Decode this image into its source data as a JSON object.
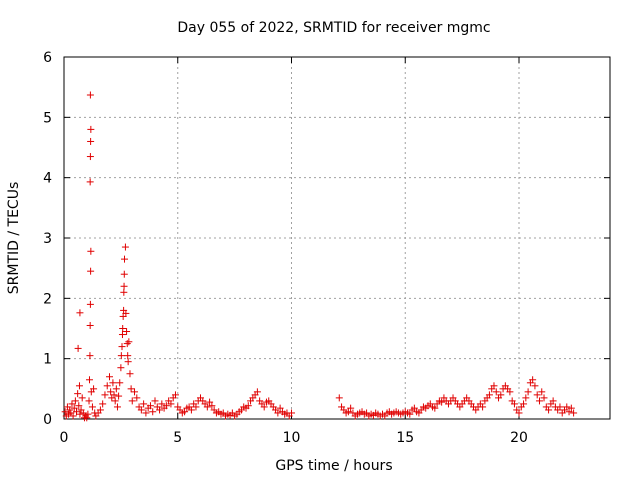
{
  "chart_data": {
    "type": "scatter",
    "title": "Day 055 of 2022, SRMTID for receiver mgmc",
    "xlabel": "GPS time / hours",
    "ylabel": "SRMTID / TECUs",
    "xlim": [
      0,
      24
    ],
    "ylim": [
      0,
      6
    ],
    "xticks": [
      0,
      5,
      10,
      15,
      20
    ],
    "yticks": [
      0,
      1,
      2,
      3,
      4,
      5,
      6
    ],
    "grid": true,
    "marker": "plus",
    "color": "#e00000",
    "series": [
      {
        "name": "SRMTID",
        "points": [
          [
            0.05,
            0.12
          ],
          [
            0.1,
            0.05
          ],
          [
            0.15,
            0.2
          ],
          [
            0.2,
            0.08
          ],
          [
            0.25,
            0.15
          ],
          [
            0.3,
            0.1
          ],
          [
            0.35,
            0.25
          ],
          [
            0.4,
            0.05
          ],
          [
            0.45,
            0.18
          ],
          [
            0.5,
            0.3
          ],
          [
            0.55,
            0.12
          ],
          [
            0.6,
            0.42
          ],
          [
            0.65,
            0.22
          ],
          [
            0.7,
            0.08
          ],
          [
            0.75,
            0.15
          ],
          [
            0.62,
            1.17
          ],
          [
            0.7,
            1.76
          ],
          [
            0.68,
            0.55
          ],
          [
            0.8,
            0.35
          ],
          [
            0.85,
            0.1
          ],
          [
            0.9,
            0.02
          ],
          [
            0.95,
            0.05
          ],
          [
            1.0,
            0.02
          ],
          [
            1.05,
            0.08
          ],
          [
            1.1,
            0.3
          ],
          [
            1.12,
            0.65
          ],
          [
            1.14,
            1.05
          ],
          [
            1.15,
            1.55
          ],
          [
            1.16,
            1.9
          ],
          [
            1.17,
            2.45
          ],
          [
            1.18,
            2.78
          ],
          [
            1.15,
            3.93
          ],
          [
            1.16,
            4.35
          ],
          [
            1.17,
            4.6
          ],
          [
            1.18,
            4.8
          ],
          [
            1.16,
            5.37
          ],
          [
            1.2,
            0.45
          ],
          [
            1.25,
            0.2
          ],
          [
            1.3,
            0.5
          ],
          [
            1.35,
            0.1
          ],
          [
            1.4,
            0.05
          ],
          [
            1.5,
            0.1
          ],
          [
            1.6,
            0.15
          ],
          [
            1.7,
            0.25
          ],
          [
            1.8,
            0.4
          ],
          [
            1.9,
            0.55
          ],
          [
            2.0,
            0.7
          ],
          [
            2.05,
            0.45
          ],
          [
            2.1,
            0.35
          ],
          [
            2.15,
            0.6
          ],
          [
            2.2,
            0.4
          ],
          [
            2.25,
            0.3
          ],
          [
            2.3,
            0.5
          ],
          [
            2.35,
            0.2
          ],
          [
            2.4,
            0.38
          ],
          [
            2.45,
            0.6
          ],
          [
            2.5,
            0.85
          ],
          [
            2.52,
            1.05
          ],
          [
            2.55,
            1.2
          ],
          [
            2.57,
            1.4
          ],
          [
            2.58,
            1.5
          ],
          [
            2.6,
            1.7
          ],
          [
            2.62,
            1.8
          ],
          [
            2.63,
            2.1
          ],
          [
            2.64,
            2.2
          ],
          [
            2.65,
            2.4
          ],
          [
            2.66,
            2.65
          ],
          [
            2.7,
            2.85
          ],
          [
            2.72,
            1.75
          ],
          [
            2.75,
            1.45
          ],
          [
            2.78,
            1.25
          ],
          [
            2.8,
            1.05
          ],
          [
            2.82,
            0.95
          ],
          [
            2.85,
            1.28
          ],
          [
            2.9,
            0.75
          ],
          [
            2.95,
            0.5
          ],
          [
            3.0,
            0.3
          ],
          [
            3.1,
            0.45
          ],
          [
            3.2,
            0.35
          ],
          [
            3.3,
            0.2
          ],
          [
            3.4,
            0.15
          ],
          [
            3.5,
            0.25
          ],
          [
            3.6,
            0.1
          ],
          [
            3.7,
            0.18
          ],
          [
            3.8,
            0.22
          ],
          [
            3.9,
            0.12
          ],
          [
            4.0,
            0.3
          ],
          [
            4.1,
            0.2
          ],
          [
            4.2,
            0.15
          ],
          [
            4.3,
            0.25
          ],
          [
            4.4,
            0.18
          ],
          [
            4.5,
            0.22
          ],
          [
            4.6,
            0.3
          ],
          [
            4.7,
            0.25
          ],
          [
            4.8,
            0.35
          ],
          [
            4.9,
            0.4
          ],
          [
            5.0,
            0.2
          ],
          [
            5.1,
            0.15
          ],
          [
            5.2,
            0.1
          ],
          [
            5.3,
            0.12
          ],
          [
            5.4,
            0.18
          ],
          [
            5.5,
            0.2
          ],
          [
            5.6,
            0.15
          ],
          [
            5.7,
            0.25
          ],
          [
            5.8,
            0.2
          ],
          [
            5.9,
            0.3
          ],
          [
            6.0,
            0.35
          ],
          [
            6.1,
            0.3
          ],
          [
            6.2,
            0.25
          ],
          [
            6.3,
            0.2
          ],
          [
            6.4,
            0.28
          ],
          [
            6.5,
            0.22
          ],
          [
            6.6,
            0.15
          ],
          [
            6.7,
            0.1
          ],
          [
            6.8,
            0.12
          ],
          [
            6.9,
            0.08
          ],
          [
            7.0,
            0.1
          ],
          [
            7.1,
            0.05
          ],
          [
            7.2,
            0.08
          ],
          [
            7.3,
            0.06
          ],
          [
            7.4,
            0.1
          ],
          [
            7.5,
            0.05
          ],
          [
            7.6,
            0.08
          ],
          [
            7.7,
            0.12
          ],
          [
            7.8,
            0.15
          ],
          [
            7.9,
            0.2
          ],
          [
            8.0,
            0.18
          ],
          [
            8.1,
            0.22
          ],
          [
            8.2,
            0.3
          ],
          [
            8.3,
            0.35
          ],
          [
            8.4,
            0.4
          ],
          [
            8.5,
            0.45
          ],
          [
            8.6,
            0.3
          ],
          [
            8.7,
            0.25
          ],
          [
            8.8,
            0.2
          ],
          [
            8.9,
            0.28
          ],
          [
            9.0,
            0.3
          ],
          [
            9.1,
            0.25
          ],
          [
            9.2,
            0.2
          ],
          [
            9.3,
            0.15
          ],
          [
            9.4,
            0.1
          ],
          [
            9.5,
            0.18
          ],
          [
            9.6,
            0.12
          ],
          [
            9.7,
            0.08
          ],
          [
            9.8,
            0.1
          ],
          [
            9.9,
            0.05
          ],
          [
            10.0,
            0.1
          ],
          [
            12.1,
            0.35
          ],
          [
            12.2,
            0.2
          ],
          [
            12.3,
            0.15
          ],
          [
            12.4,
            0.1
          ],
          [
            12.5,
            0.12
          ],
          [
            12.6,
            0.18
          ],
          [
            12.7,
            0.1
          ],
          [
            12.8,
            0.05
          ],
          [
            12.9,
            0.08
          ],
          [
            13.0,
            0.1
          ],
          [
            13.1,
            0.12
          ],
          [
            13.2,
            0.08
          ],
          [
            13.3,
            0.1
          ],
          [
            13.4,
            0.05
          ],
          [
            13.5,
            0.08
          ],
          [
            13.6,
            0.06
          ],
          [
            13.7,
            0.1
          ],
          [
            13.8,
            0.08
          ],
          [
            13.9,
            0.05
          ],
          [
            14.0,
            0.08
          ],
          [
            14.1,
            0.05
          ],
          [
            14.2,
            0.1
          ],
          [
            14.3,
            0.12
          ],
          [
            14.4,
            0.08
          ],
          [
            14.5,
            0.1
          ],
          [
            14.6,
            0.12
          ],
          [
            14.7,
            0.1
          ],
          [
            14.8,
            0.08
          ],
          [
            14.9,
            0.1
          ],
          [
            15.0,
            0.12
          ],
          [
            15.1,
            0.1
          ],
          [
            15.2,
            0.08
          ],
          [
            15.3,
            0.15
          ],
          [
            15.4,
            0.18
          ],
          [
            15.5,
            0.12
          ],
          [
            15.6,
            0.1
          ],
          [
            15.7,
            0.15
          ],
          [
            15.8,
            0.2
          ],
          [
            15.9,
            0.18
          ],
          [
            16.0,
            0.22
          ],
          [
            16.1,
            0.25
          ],
          [
            16.2,
            0.2
          ],
          [
            16.3,
            0.18
          ],
          [
            16.4,
            0.25
          ],
          [
            16.5,
            0.3
          ],
          [
            16.6,
            0.28
          ],
          [
            16.7,
            0.35
          ],
          [
            16.8,
            0.3
          ],
          [
            16.9,
            0.25
          ],
          [
            17.0,
            0.3
          ],
          [
            17.1,
            0.35
          ],
          [
            17.2,
            0.3
          ],
          [
            17.3,
            0.25
          ],
          [
            17.4,
            0.2
          ],
          [
            17.5,
            0.25
          ],
          [
            17.6,
            0.3
          ],
          [
            17.7,
            0.35
          ],
          [
            17.8,
            0.3
          ],
          [
            17.9,
            0.25
          ],
          [
            18.0,
            0.2
          ],
          [
            18.1,
            0.15
          ],
          [
            18.2,
            0.2
          ],
          [
            18.3,
            0.25
          ],
          [
            18.4,
            0.2
          ],
          [
            18.5,
            0.3
          ],
          [
            18.6,
            0.35
          ],
          [
            18.7,
            0.4
          ],
          [
            18.8,
            0.5
          ],
          [
            18.9,
            0.55
          ],
          [
            19.0,
            0.45
          ],
          [
            19.1,
            0.35
          ],
          [
            19.2,
            0.4
          ],
          [
            19.3,
            0.5
          ],
          [
            19.4,
            0.55
          ],
          [
            19.5,
            0.5
          ],
          [
            19.6,
            0.45
          ],
          [
            19.7,
            0.3
          ],
          [
            19.8,
            0.25
          ],
          [
            19.9,
            0.15
          ],
          [
            20.0,
            0.1
          ],
          [
            20.1,
            0.2
          ],
          [
            20.2,
            0.25
          ],
          [
            20.3,
            0.35
          ],
          [
            20.4,
            0.45
          ],
          [
            20.5,
            0.6
          ],
          [
            20.6,
            0.65
          ],
          [
            20.7,
            0.55
          ],
          [
            20.8,
            0.4
          ],
          [
            20.9,
            0.3
          ],
          [
            21.0,
            0.45
          ],
          [
            21.1,
            0.35
          ],
          [
            21.2,
            0.2
          ],
          [
            21.3,
            0.15
          ],
          [
            21.4,
            0.25
          ],
          [
            21.5,
            0.3
          ],
          [
            21.6,
            0.2
          ],
          [
            21.7,
            0.15
          ],
          [
            21.8,
            0.2
          ],
          [
            21.9,
            0.1
          ],
          [
            22.0,
            0.15
          ],
          [
            22.1,
            0.2
          ],
          [
            22.2,
            0.12
          ],
          [
            22.3,
            0.18
          ],
          [
            22.4,
            0.1
          ]
        ]
      }
    ]
  }
}
